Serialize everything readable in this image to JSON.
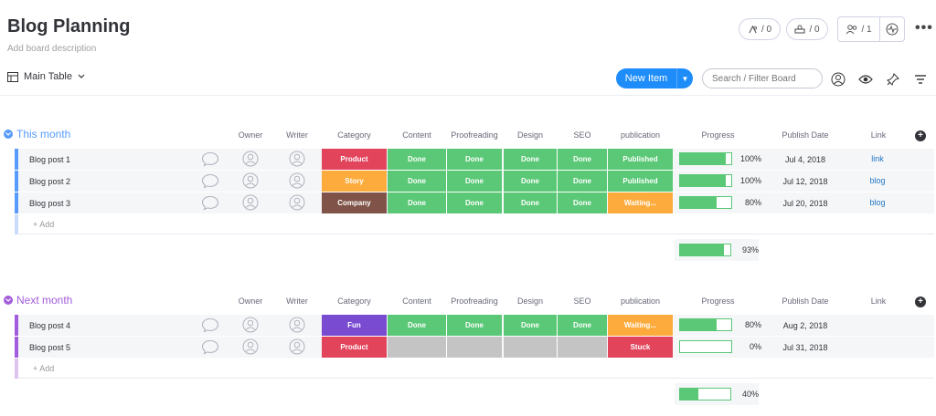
{
  "board": {
    "title": "Blog Planning",
    "description": "Add board description",
    "activity_count": "/ 0",
    "integrations_count": "/ 0",
    "members_count": "/ 1"
  },
  "toolbar": {
    "view_label": "Main Table",
    "new_item_label": "New Item",
    "search_placeholder": "Search / Filter Board"
  },
  "columns": [
    "Owner",
    "Writer",
    "Category",
    "Content",
    "Proofreading",
    "Design",
    "SEO",
    "publication",
    "Progress",
    "Publish Date",
    "Link"
  ],
  "colors": {
    "done": "#5ac876",
    "product": "#e2445c",
    "story": "#fdab3d",
    "company": "#7f5347",
    "fun": "#784bd1",
    "waiting": "#fdab3d",
    "stuck": "#e2445c",
    "empty": "#c4c4c4",
    "group_this_month": "#579bfc",
    "group_next_month": "#a25ddc"
  },
  "groups": [
    {
      "title": "This month",
      "add_label": "+ Add",
      "summary_progress": "93%",
      "summary_value": 93,
      "items": [
        {
          "name": "Blog post 1",
          "category": "Product",
          "content": "Done",
          "proofreading": "Done",
          "design": "Done",
          "seo": "Done",
          "publication": "Published",
          "progress": 100,
          "progress_label": "100%",
          "date": "Jul 4, 2018",
          "link": "link"
        },
        {
          "name": "Blog post 2",
          "category": "Story",
          "content": "Done",
          "proofreading": "Done",
          "design": "Done",
          "seo": "Done",
          "publication": "Published",
          "progress": 100,
          "progress_label": "100%",
          "date": "Jul 12, 2018",
          "link": "blog"
        },
        {
          "name": "Blog post 3",
          "category": "Company",
          "content": "Done",
          "proofreading": "Done",
          "design": "Done",
          "seo": "Done",
          "publication": "Waiting...",
          "progress": 80,
          "progress_label": "80%",
          "date": "Jul 20, 2018",
          "link": "blog"
        }
      ]
    },
    {
      "title": "Next month",
      "add_label": "+ Add",
      "summary_progress": "40%",
      "summary_value": 40,
      "items": [
        {
          "name": "Blog post 4",
          "category": "Fun",
          "content": "Done",
          "proofreading": "Done",
          "design": "Done",
          "seo": "Done",
          "publication": "Waiting...",
          "progress": 80,
          "progress_label": "80%",
          "date": "Aug 2, 2018",
          "link": ""
        },
        {
          "name": "Blog post 5",
          "category": "Product",
          "content": "",
          "proofreading": "",
          "design": "",
          "seo": "",
          "publication": "Stuck",
          "progress": 0,
          "progress_label": "0%",
          "date": "Jul 31, 2018",
          "link": ""
        }
      ]
    }
  ]
}
